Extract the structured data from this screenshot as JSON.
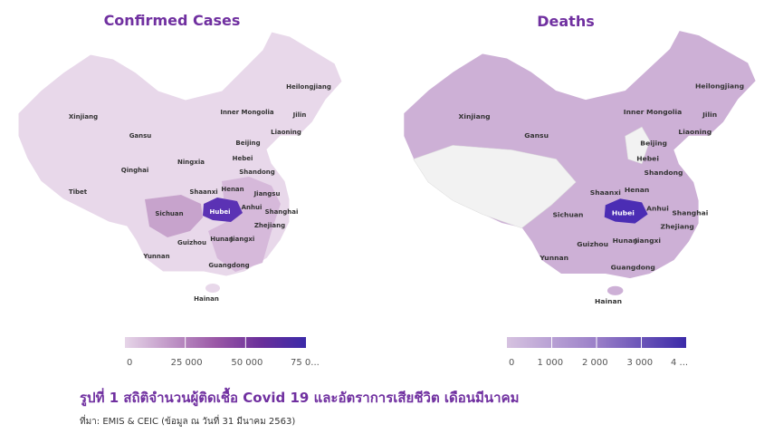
{
  "maps": [
    {
      "title": "Confirmed Cases",
      "labels": [
        "Heilongjiang",
        "Xinjiang",
        "Inner Mongolia",
        "Jilin",
        "Gansu",
        "Liaoning",
        "Beijing",
        "Qinghai",
        "Ningxia",
        "Hebei",
        "Shandong",
        "Tibet",
        "Shaanxi",
        "Henan",
        "Jiangsu",
        "Sichuan",
        "Hubei",
        "Anhui",
        "Shanghai",
        "Zhejiang",
        "Hunan",
        "Jiangxi",
        "Guizhou",
        "Yunnan",
        "Guangdong",
        "Hainan"
      ],
      "legend": {
        "ticks": [
          "0",
          "25 000",
          "50 000",
          "75 0..."
        ]
      }
    },
    {
      "title": "Deaths",
      "labels": [
        "Heilongjiang",
        "Xinjiang",
        "Inner Mongolia",
        "Jilin",
        "Gansu",
        "Liaoning",
        "Beijing",
        "Hebei",
        "Shandong",
        "Shaanxi",
        "Henan",
        "Sichuan",
        "Hubei",
        "Anhui",
        "Shanghai",
        "Zhejiang",
        "Hunan",
        "Jiangxi",
        "Guizhou",
        "Yunnan",
        "Guangdong",
        "Hainan"
      ],
      "legend": {
        "ticks": [
          "0",
          "1 000",
          "2 000",
          "3 000",
          "4 ..."
        ]
      }
    }
  ],
  "caption": "รูปที่ 1 สถิติจำนวนผู้ติดเชื้อ Covid 19 และอัตราการเสียชีวิต เดือนมีนาคม",
  "source": "ที่มา: EMIS & CEIC (ข้อมูล ณ วันที่ 31 มีนาคม 2563)"
}
